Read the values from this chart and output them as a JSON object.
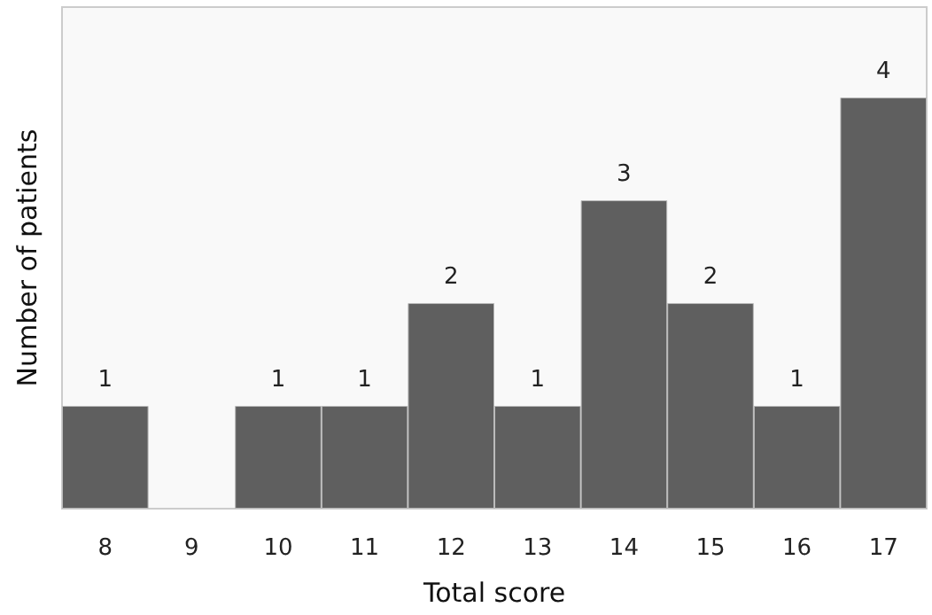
{
  "chart_data": {
    "type": "bar",
    "xlabel": "Total score",
    "ylabel": "Number of patients",
    "categories": [
      "8",
      "9",
      "10",
      "11",
      "12",
      "13",
      "14",
      "15",
      "16",
      "17"
    ],
    "values": [
      1,
      0,
      1,
      1,
      2,
      1,
      3,
      2,
      1,
      4
    ],
    "value_labels": [
      "1",
      null,
      "1",
      "1",
      "2",
      "1",
      "3",
      "2",
      "1",
      "4"
    ],
    "color": "#5f5f5f",
    "grid": false
  }
}
